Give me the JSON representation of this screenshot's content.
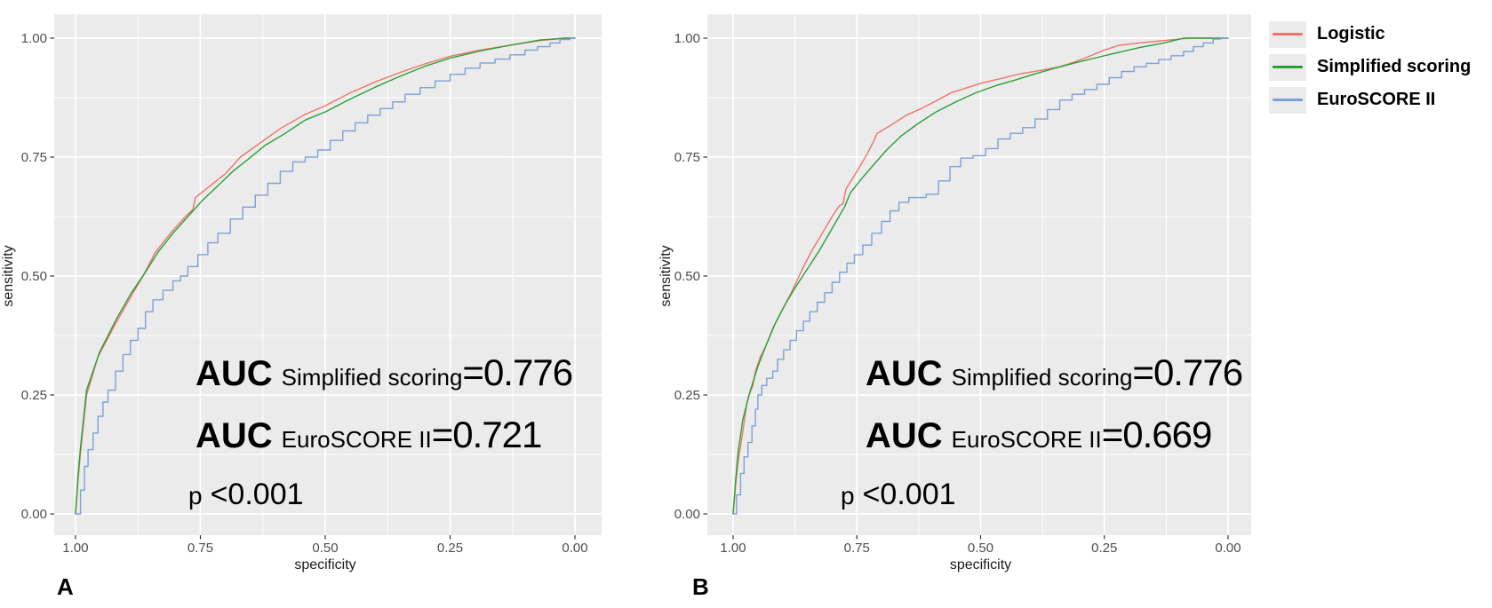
{
  "figure": {
    "background": "#ffffff",
    "panel_letters": [
      "A",
      "B"
    ]
  },
  "legend": {
    "position": "top-right",
    "items": [
      {
        "label": "Logistic",
        "color": "#ED7469"
      },
      {
        "label": "Simplified scoring",
        "color": "#29A035"
      },
      {
        "label": "EuroSCORE II",
        "color": "#7CA1D7"
      }
    ]
  },
  "chart_data": [
    {
      "type": "line",
      "panel_label": "A",
      "xlabel": "specificity",
      "ylabel": "sensitivity",
      "x_ticks": [
        "1.00",
        "0.75",
        "0.50",
        "0.25",
        "0.00"
      ],
      "y_ticks": [
        "0.00",
        "0.25",
        "0.50",
        "0.75",
        "1.00"
      ],
      "x_reversed": true,
      "xlim": [
        1.0,
        0.0
      ],
      "ylim": [
        0.0,
        1.0
      ],
      "grid": true,
      "panel_bg": "#EBEBEB",
      "grid_color": "#FFFFFF",
      "tick_text_color": "#4D4D4D",
      "axis_title_color": "#1A1A1A",
      "series": [
        {
          "name": "Logistic",
          "color": "#ED7469",
          "step": false,
          "points": [
            [
              1,
              0
            ],
            [
              0.995,
              0.07
            ],
            [
              0.99,
              0.13
            ],
            [
              0.978,
              0.25
            ],
            [
              0.955,
              0.33
            ],
            [
              0.92,
              0.4
            ],
            [
              0.89,
              0.455
            ],
            [
              0.865,
              0.5
            ],
            [
              0.84,
              0.55
            ],
            [
              0.81,
              0.59
            ],
            [
              0.78,
              0.625
            ],
            [
              0.765,
              0.64
            ],
            [
              0.76,
              0.665
            ],
            [
              0.73,
              0.69
            ],
            [
              0.7,
              0.715
            ],
            [
              0.67,
              0.75
            ],
            [
              0.63,
              0.78
            ],
            [
              0.59,
              0.81
            ],
            [
              0.54,
              0.84
            ],
            [
              0.5,
              0.858
            ],
            [
              0.45,
              0.885
            ],
            [
              0.4,
              0.908
            ],
            [
              0.35,
              0.928
            ],
            [
              0.3,
              0.946
            ],
            [
              0.25,
              0.962
            ],
            [
              0.19,
              0.975
            ],
            [
              0.13,
              0.985
            ],
            [
              0.07,
              0.995
            ],
            [
              0.02,
              1.0
            ],
            [
              0,
              1.0
            ]
          ]
        },
        {
          "name": "Simplified scoring",
          "color": "#29A035",
          "step": false,
          "points": [
            [
              1,
              0
            ],
            [
              0.995,
              0.08
            ],
            [
              0.99,
              0.14
            ],
            [
              0.978,
              0.26
            ],
            [
              0.952,
              0.34
            ],
            [
              0.918,
              0.41
            ],
            [
              0.888,
              0.465
            ],
            [
              0.862,
              0.505
            ],
            [
              0.835,
              0.55
            ],
            [
              0.805,
              0.59
            ],
            [
              0.775,
              0.625
            ],
            [
              0.745,
              0.66
            ],
            [
              0.715,
              0.69
            ],
            [
              0.685,
              0.72
            ],
            [
              0.655,
              0.745
            ],
            [
              0.62,
              0.775
            ],
            [
              0.58,
              0.8
            ],
            [
              0.54,
              0.828
            ],
            [
              0.5,
              0.845
            ],
            [
              0.45,
              0.872
            ],
            [
              0.4,
              0.897
            ],
            [
              0.35,
              0.92
            ],
            [
              0.3,
              0.941
            ],
            [
              0.25,
              0.958
            ],
            [
              0.19,
              0.973
            ],
            [
              0.13,
              0.985
            ],
            [
              0.07,
              0.996
            ],
            [
              0.02,
              1.0
            ],
            [
              0,
              1.0
            ]
          ]
        },
        {
          "name": "EuroSCORE II",
          "color": "#7CA1D7",
          "step": true,
          "points": [
            [
              1,
              0
            ],
            [
              0.99,
              0.05
            ],
            [
              0.982,
              0.1
            ],
            [
              0.975,
              0.135
            ],
            [
              0.965,
              0.17
            ],
            [
              0.955,
              0.205
            ],
            [
              0.945,
              0.235
            ],
            [
              0.935,
              0.26
            ],
            [
              0.92,
              0.3
            ],
            [
              0.905,
              0.335
            ],
            [
              0.89,
              0.365
            ],
            [
              0.875,
              0.39
            ],
            [
              0.86,
              0.425
            ],
            [
              0.845,
              0.45
            ],
            [
              0.825,
              0.47
            ],
            [
              0.805,
              0.49
            ],
            [
              0.79,
              0.5
            ],
            [
              0.775,
              0.52
            ],
            [
              0.755,
              0.545
            ],
            [
              0.735,
              0.57
            ],
            [
              0.715,
              0.59
            ],
            [
              0.69,
              0.62
            ],
            [
              0.665,
              0.645
            ],
            [
              0.64,
              0.67
            ],
            [
              0.615,
              0.695
            ],
            [
              0.59,
              0.72
            ],
            [
              0.565,
              0.74
            ],
            [
              0.54,
              0.75
            ],
            [
              0.515,
              0.765
            ],
            [
              0.49,
              0.785
            ],
            [
              0.465,
              0.805
            ],
            [
              0.44,
              0.822
            ],
            [
              0.415,
              0.838
            ],
            [
              0.39,
              0.852
            ],
            [
              0.365,
              0.866
            ],
            [
              0.34,
              0.882
            ],
            [
              0.31,
              0.896
            ],
            [
              0.28,
              0.91
            ],
            [
              0.25,
              0.924
            ],
            [
              0.22,
              0.937
            ],
            [
              0.19,
              0.948
            ],
            [
              0.16,
              0.956
            ],
            [
              0.13,
              0.965
            ],
            [
              0.1,
              0.975
            ],
            [
              0.075,
              0.982
            ],
            [
              0.05,
              0.99
            ],
            [
              0.03,
              0.997
            ],
            [
              0.01,
              1.0
            ],
            [
              0,
              1.0
            ]
          ]
        }
      ],
      "annotations": {
        "auc_lines": [
          {
            "prefix": "AUC",
            "sub": "Simplified scoring",
            "value": "=0.776"
          },
          {
            "prefix": "AUC",
            "sub": "EuroSCORE II",
            "value": "=0.721"
          }
        ],
        "p_line": {
          "prefix": "p",
          "value": "<0.001"
        }
      }
    },
    {
      "type": "line",
      "panel_label": "B",
      "xlabel": "specificity",
      "ylabel": "sensitivity",
      "x_ticks": [
        "1.00",
        "0.75",
        "0.50",
        "0.25",
        "0.00"
      ],
      "y_ticks": [
        "0.00",
        "0.25",
        "0.50",
        "0.75",
        "1.00"
      ],
      "x_reversed": true,
      "xlim": [
        1.0,
        0.0
      ],
      "ylim": [
        0.0,
        1.0
      ],
      "grid": true,
      "panel_bg": "#EBEBEB",
      "grid_color": "#FFFFFF",
      "tick_text_color": "#4D4D4D",
      "axis_title_color": "#1A1A1A",
      "series": [
        {
          "name": "Logistic",
          "color": "#ED7469",
          "step": false,
          "points": [
            [
              1,
              0
            ],
            [
              0.995,
              0.06
            ],
            [
              0.99,
              0.11
            ],
            [
              0.98,
              0.175
            ],
            [
              0.972,
              0.235
            ],
            [
              0.968,
              0.25
            ],
            [
              0.96,
              0.27
            ],
            [
              0.955,
              0.3
            ],
            [
              0.945,
              0.33
            ],
            [
              0.935,
              0.35
            ],
            [
              0.92,
              0.39
            ],
            [
              0.9,
              0.43
            ],
            [
              0.88,
              0.47
            ],
            [
              0.86,
              0.515
            ],
            [
              0.84,
              0.555
            ],
            [
              0.82,
              0.59
            ],
            [
              0.8,
              0.625
            ],
            [
              0.785,
              0.648
            ],
            [
              0.778,
              0.652
            ],
            [
              0.772,
              0.683
            ],
            [
              0.75,
              0.72
            ],
            [
              0.73,
              0.755
            ],
            [
              0.715,
              0.785
            ],
            [
              0.709,
              0.8
            ],
            [
              0.68,
              0.818
            ],
            [
              0.65,
              0.838
            ],
            [
              0.62,
              0.852
            ],
            [
              0.59,
              0.868
            ],
            [
              0.56,
              0.885
            ],
            [
              0.53,
              0.895
            ],
            [
              0.5,
              0.905
            ],
            [
              0.46,
              0.915
            ],
            [
              0.42,
              0.925
            ],
            [
              0.38,
              0.932
            ],
            [
              0.34,
              0.94
            ],
            [
              0.31,
              0.95
            ],
            [
              0.28,
              0.962
            ],
            [
              0.25,
              0.975
            ],
            [
              0.22,
              0.985
            ],
            [
              0.18,
              0.99
            ],
            [
              0.13,
              0.995
            ],
            [
              0.08,
              1.0
            ],
            [
              0,
              1.0
            ]
          ]
        },
        {
          "name": "Simplified scoring",
          "color": "#29A035",
          "step": false,
          "points": [
            [
              1,
              0
            ],
            [
              0.995,
              0.07
            ],
            [
              0.99,
              0.13
            ],
            [
              0.98,
              0.2
            ],
            [
              0.965,
              0.26
            ],
            [
              0.95,
              0.31
            ],
            [
              0.935,
              0.35
            ],
            [
              0.915,
              0.4
            ],
            [
              0.895,
              0.44
            ],
            [
              0.875,
              0.475
            ],
            [
              0.85,
              0.515
            ],
            [
              0.825,
              0.555
            ],
            [
              0.8,
              0.6
            ],
            [
              0.775,
              0.645
            ],
            [
              0.763,
              0.675
            ],
            [
              0.74,
              0.705
            ],
            [
              0.715,
              0.735
            ],
            [
              0.69,
              0.765
            ],
            [
              0.66,
              0.795
            ],
            [
              0.627,
              0.82
            ],
            [
              0.59,
              0.845
            ],
            [
              0.55,
              0.866
            ],
            [
              0.51,
              0.885
            ],
            [
              0.47,
              0.9
            ],
            [
              0.43,
              0.912
            ],
            [
              0.39,
              0.925
            ],
            [
              0.35,
              0.937
            ],
            [
              0.31,
              0.948
            ],
            [
              0.27,
              0.958
            ],
            [
              0.23,
              0.968
            ],
            [
              0.18,
              0.98
            ],
            [
              0.13,
              0.99
            ],
            [
              0.09,
              1.0
            ],
            [
              0,
              1.0
            ]
          ]
        },
        {
          "name": "EuroSCORE II",
          "color": "#7CA1D7",
          "step": true,
          "points": [
            [
              1,
              0
            ],
            [
              0.993,
              0.04
            ],
            [
              0.985,
              0.085
            ],
            [
              0.978,
              0.12
            ],
            [
              0.97,
              0.15
            ],
            [
              0.962,
              0.185
            ],
            [
              0.955,
              0.22
            ],
            [
              0.95,
              0.25
            ],
            [
              0.942,
              0.27
            ],
            [
              0.932,
              0.285
            ],
            [
              0.92,
              0.3
            ],
            [
              0.91,
              0.325
            ],
            [
              0.898,
              0.345
            ],
            [
              0.885,
              0.365
            ],
            [
              0.872,
              0.385
            ],
            [
              0.858,
              0.405
            ],
            [
              0.845,
              0.425
            ],
            [
              0.83,
              0.445
            ],
            [
              0.815,
              0.465
            ],
            [
              0.8,
              0.487
            ],
            [
              0.785,
              0.508
            ],
            [
              0.77,
              0.527
            ],
            [
              0.755,
              0.545
            ],
            [
              0.738,
              0.565
            ],
            [
              0.72,
              0.59
            ],
            [
              0.7,
              0.615
            ],
            [
              0.683,
              0.637
            ],
            [
              0.665,
              0.655
            ],
            [
              0.645,
              0.665
            ],
            [
              0.61,
              0.672
            ],
            [
              0.585,
              0.7
            ],
            [
              0.562,
              0.73
            ],
            [
              0.54,
              0.748
            ],
            [
              0.515,
              0.753
            ],
            [
              0.49,
              0.768
            ],
            [
              0.465,
              0.788
            ],
            [
              0.44,
              0.8
            ],
            [
              0.415,
              0.812
            ],
            [
              0.39,
              0.83
            ],
            [
              0.365,
              0.85
            ],
            [
              0.34,
              0.87
            ],
            [
              0.315,
              0.882
            ],
            [
              0.29,
              0.892
            ],
            [
              0.265,
              0.903
            ],
            [
              0.24,
              0.917
            ],
            [
              0.215,
              0.93
            ],
            [
              0.19,
              0.94
            ],
            [
              0.165,
              0.947
            ],
            [
              0.14,
              0.955
            ],
            [
              0.115,
              0.963
            ],
            [
              0.09,
              0.972
            ],
            [
              0.07,
              0.982
            ],
            [
              0.05,
              0.99
            ],
            [
              0.03,
              0.998
            ],
            [
              0.015,
              1.0
            ],
            [
              0,
              1.0
            ]
          ]
        }
      ],
      "annotations": {
        "auc_lines": [
          {
            "prefix": "AUC",
            "sub": "Simplified scoring",
            "value": "=0.776"
          },
          {
            "prefix": "AUC",
            "sub": "EuroSCORE II",
            "value": "=0.669"
          }
        ],
        "p_line": {
          "prefix": "p",
          "value": "<0.001"
        }
      }
    }
  ]
}
